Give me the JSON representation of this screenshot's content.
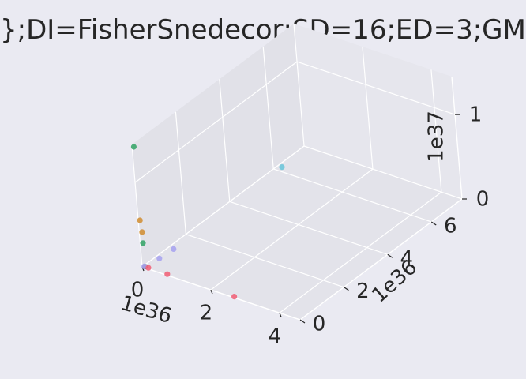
{
  "chart_data": {
    "type": "scatter",
    "projection": "3d",
    "title": "};DI=FisherSnedecor;SD=16;ED=3;GM",
    "x_ticks": [
      "0",
      "2",
      "4"
    ],
    "x_offset": "1e36",
    "y_ticks": [
      "0",
      "2",
      "4",
      "6"
    ],
    "y_offset": "1e36",
    "z_ticks": [
      "0",
      "1"
    ],
    "z_offset": "1e37",
    "xlim": [
      0,
      4.6
    ],
    "ylim": [
      0,
      7.4
    ],
    "zlim": [
      0,
      1.45
    ],
    "grid": true,
    "points": [
      {
        "x": 0.03,
        "y": 0.03,
        "z": 1.42,
        "color": "#3ba66b"
      },
      {
        "x": 0.03,
        "y": 0.03,
        "z": 0.55,
        "color": "#d1913a"
      },
      {
        "x": 0.05,
        "y": 0.05,
        "z": 0.41,
        "color": "#d1913a"
      },
      {
        "x": 0.05,
        "y": 0.05,
        "z": 0.28,
        "color": "#3ba66b"
      },
      {
        "x": 0.05,
        "y": 0.05,
        "z": 0.0,
        "color": "#555555"
      },
      {
        "x": 0.03,
        "y": 0.05,
        "z": 0.0,
        "color": "#a9a4f0"
      },
      {
        "x": 0.12,
        "y": 0.6,
        "z": 0.0,
        "color": "#a9a4f0"
      },
      {
        "x": 0.15,
        "y": 1.2,
        "z": 0.0,
        "color": "#a9a4f0"
      },
      {
        "x": 0.12,
        "y": 6.2,
        "z": 0.0,
        "color": "#6ec5da"
      },
      {
        "x": 0.15,
        "y": 0.05,
        "z": 0.0,
        "color": "#f0647a"
      },
      {
        "x": 0.7,
        "y": 0.05,
        "z": 0.0,
        "color": "#f0647a"
      },
      {
        "x": 2.65,
        "y": 0.05,
        "z": 0.0,
        "color": "#f0647a"
      }
    ]
  }
}
